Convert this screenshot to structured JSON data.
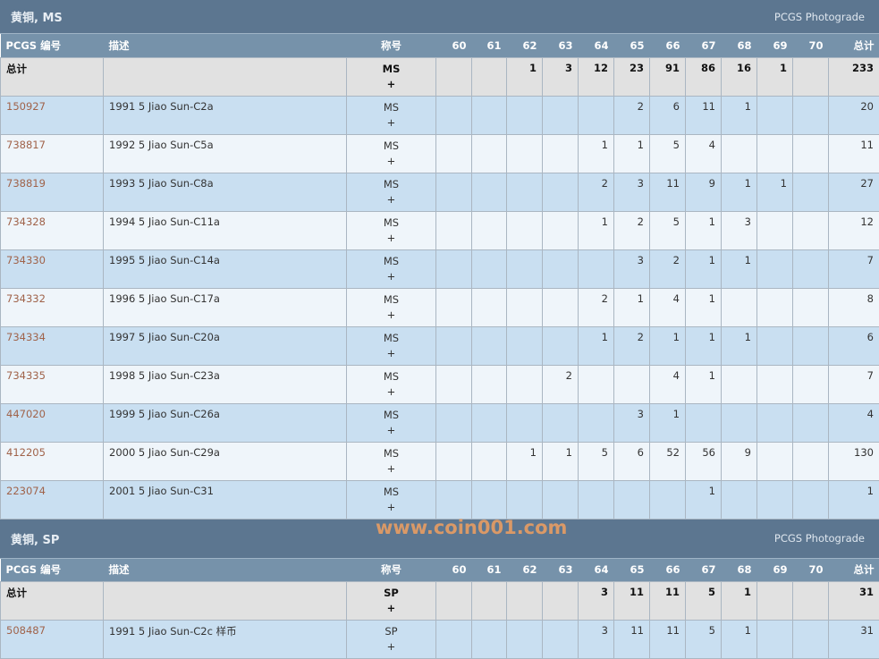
{
  "grades": [
    "60",
    "61",
    "62",
    "63",
    "64",
    "65",
    "66",
    "67",
    "68",
    "69",
    "70"
  ],
  "headers": {
    "id": "PCGS 编号",
    "desc": "描述",
    "designation": "称号",
    "total": "总计"
  },
  "sections": [
    {
      "title": "黄铜, MS",
      "photograde": "PCGS Photograde",
      "total": {
        "label": "总计",
        "designation": "MS",
        "plus": "+",
        "counts": [
          "",
          "",
          "1",
          "3",
          "12",
          "23",
          "91",
          "86",
          "16",
          "1",
          ""
        ],
        "sum": "233"
      },
      "rows": [
        {
          "id": "150927",
          "desc": "1991 5 Jiao Sun-C2a",
          "designation": "MS",
          "plus": "+",
          "counts": [
            "",
            "",
            "",
            "",
            "",
            "2",
            "6",
            "11",
            "1",
            "",
            ""
          ],
          "sum": "20"
        },
        {
          "id": "738817",
          "desc": "1992 5 Jiao Sun-C5a",
          "designation": "MS",
          "plus": "+",
          "counts": [
            "",
            "",
            "",
            "",
            "1",
            "1",
            "5",
            "4",
            "",
            "",
            ""
          ],
          "sum": "11"
        },
        {
          "id": "738819",
          "desc": "1993 5 Jiao Sun-C8a",
          "designation": "MS",
          "plus": "+",
          "counts": [
            "",
            "",
            "",
            "",
            "2",
            "3",
            "11",
            "9",
            "1",
            "1",
            ""
          ],
          "sum": "27"
        },
        {
          "id": "734328",
          "desc": "1994 5 Jiao Sun-C11a",
          "designation": "MS",
          "plus": "+",
          "counts": [
            "",
            "",
            "",
            "",
            "1",
            "2",
            "5",
            "1",
            "3",
            "",
            ""
          ],
          "sum": "12"
        },
        {
          "id": "734330",
          "desc": "1995 5 Jiao Sun-C14a",
          "designation": "MS",
          "plus": "+",
          "counts": [
            "",
            "",
            "",
            "",
            "",
            "3",
            "2",
            "1",
            "1",
            "",
            ""
          ],
          "sum": "7"
        },
        {
          "id": "734332",
          "desc": "1996 5 Jiao Sun-C17a",
          "designation": "MS",
          "plus": "+",
          "counts": [
            "",
            "",
            "",
            "",
            "2",
            "1",
            "4",
            "1",
            "",
            "",
            ""
          ],
          "sum": "8"
        },
        {
          "id": "734334",
          "desc": "1997 5 Jiao Sun-C20a",
          "designation": "MS",
          "plus": "+",
          "counts": [
            "",
            "",
            "",
            "",
            "1",
            "2",
            "1",
            "1",
            "1",
            "",
            ""
          ],
          "sum": "6"
        },
        {
          "id": "734335",
          "desc": "1998 5 Jiao Sun-C23a",
          "designation": "MS",
          "plus": "+",
          "counts": [
            "",
            "",
            "",
            "2",
            "",
            "",
            "4",
            "1",
            "",
            "",
            ""
          ],
          "sum": "7"
        },
        {
          "id": "447020",
          "desc": "1999 5 Jiao Sun-C26a",
          "designation": "MS",
          "plus": "+",
          "counts": [
            "",
            "",
            "",
            "",
            "",
            "3",
            "1",
            "",
            "",
            "",
            ""
          ],
          "sum": "4"
        },
        {
          "id": "412205",
          "desc": "2000 5 Jiao Sun-C29a",
          "designation": "MS",
          "plus": "+",
          "counts": [
            "",
            "",
            "1",
            "1",
            "5",
            "6",
            "52",
            "56",
            "9",
            "",
            ""
          ],
          "sum": "130"
        },
        {
          "id": "223074",
          "desc": "2001 5 Jiao Sun-C31",
          "designation": "MS",
          "plus": "+",
          "counts": [
            "",
            "",
            "",
            "",
            "",
            "",
            "",
            "1",
            "",
            "",
            ""
          ],
          "sum": "1"
        }
      ]
    },
    {
      "title": "黄铜, SP",
      "photograde": "PCGS Photograde",
      "total": {
        "label": "总计",
        "designation": "SP",
        "plus": "+",
        "counts": [
          "",
          "",
          "",
          "",
          "3",
          "11",
          "11",
          "5",
          "1",
          "",
          ""
        ],
        "sum": "31"
      },
      "rows": [
        {
          "id": "508487",
          "desc": "1991 5 Jiao Sun-C2c 样币",
          "designation": "SP",
          "plus": "+",
          "counts": [
            "",
            "",
            "",
            "",
            "3",
            "11",
            "11",
            "5",
            "1",
            "",
            ""
          ],
          "sum": "31"
        }
      ]
    }
  ],
  "watermark": "www.coin001.com"
}
